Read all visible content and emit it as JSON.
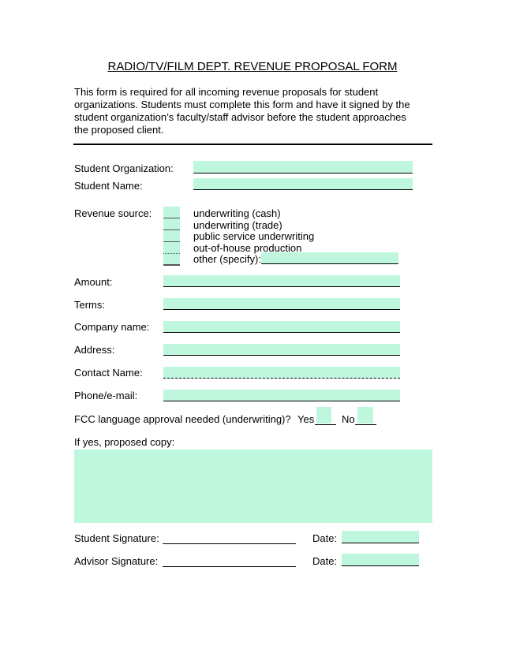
{
  "title": "RADIO/TV/FILM DEPT. REVENUE PROPOSAL FORM",
  "intro": "This form is required for all incoming revenue proposals for student organizations.  Students must complete this form and have it signed by the student organization’s faculty/staff advisor before the student approaches the proposed client.",
  "fields": {
    "student_org": "Student Organization:",
    "student_name": "Student Name:",
    "revenue_source": "Revenue source:",
    "amount": "Amount:",
    "terms": "Terms:",
    "company": "Company name:",
    "address": "Address:",
    "contact": "Contact Name:",
    "phone": "Phone/e-mail:"
  },
  "revenue_options": [
    "underwriting (cash)",
    "underwriting (trade)",
    "public service underwriting",
    "out-of-house production",
    "other (specify):"
  ],
  "fcc": {
    "question": "FCC language approval needed (underwriting)?",
    "yes": "Yes",
    "no": "No"
  },
  "copy_label": "If yes, proposed copy:",
  "signatures": {
    "student": "Student Signature:",
    "advisor": "Advisor Signature:",
    "date": "Date:"
  },
  "colors": {
    "field_fill": "#bff7de"
  }
}
